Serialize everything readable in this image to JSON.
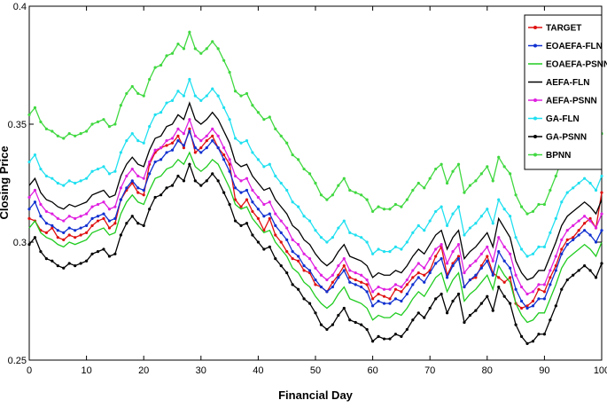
{
  "chart_data": {
    "type": "line",
    "title": "",
    "xlabel": "Financial Day",
    "ylabel": "Closing Price",
    "xlim": [
      0,
      100
    ],
    "ylim": [
      0.25,
      0.4
    ],
    "xticks": [
      0,
      10,
      20,
      30,
      40,
      50,
      60,
      70,
      80,
      90,
      100
    ],
    "yticks": [
      0.25,
      0.3,
      0.35,
      0.4
    ],
    "xtick_labels": [
      "0",
      "10",
      "20",
      "30",
      "40",
      "50",
      "60",
      "70",
      "80",
      "90",
      "100"
    ],
    "ytick_labels": [
      "0.25",
      "0.3",
      "0.35",
      "0.4"
    ],
    "grid": false,
    "legend_position": "top-right",
    "x": [
      0,
      1,
      2,
      3,
      4,
      5,
      6,
      7,
      8,
      9,
      10,
      11,
      12,
      13,
      14,
      15,
      16,
      17,
      18,
      19,
      20,
      21,
      22,
      23,
      24,
      25,
      26,
      27,
      28,
      29,
      30,
      31,
      32,
      33,
      34,
      35,
      36,
      37,
      38,
      39,
      40,
      41,
      42,
      43,
      44,
      45,
      46,
      47,
      48,
      49,
      50,
      51,
      52,
      53,
      54,
      55,
      56,
      57,
      58,
      59,
      60,
      61,
      62,
      63,
      64,
      65,
      66,
      67,
      68,
      69,
      70,
      71,
      72,
      73,
      74,
      75,
      76,
      77,
      78,
      79,
      80,
      81,
      82,
      83,
      84,
      85,
      86,
      87,
      88,
      89,
      90,
      91,
      92,
      93,
      94,
      95,
      96,
      97,
      98,
      99,
      100
    ],
    "series": [
      {
        "name": "TARGET",
        "color": "#e01010",
        "marker": "dot",
        "values": [
          0.31,
          0.309,
          0.305,
          0.304,
          0.306,
          0.302,
          0.301,
          0.303,
          0.302,
          0.303,
          0.304,
          0.307,
          0.309,
          0.31,
          0.306,
          0.308,
          0.318,
          0.322,
          0.325,
          0.321,
          0.32,
          0.333,
          0.338,
          0.34,
          0.341,
          0.342,
          0.345,
          0.34,
          0.348,
          0.338,
          0.34,
          0.343,
          0.345,
          0.34,
          0.337,
          0.333,
          0.318,
          0.315,
          0.318,
          0.313,
          0.31,
          0.305,
          0.31,
          0.303,
          0.3,
          0.296,
          0.293,
          0.292,
          0.288,
          0.287,
          0.282,
          0.281,
          0.279,
          0.283,
          0.286,
          0.29,
          0.285,
          0.284,
          0.283,
          0.282,
          0.276,
          0.278,
          0.277,
          0.276,
          0.28,
          0.279,
          0.282,
          0.285,
          0.287,
          0.286,
          0.288,
          0.294,
          0.298,
          0.286,
          0.291,
          0.294,
          0.281,
          0.284,
          0.285,
          0.29,
          0.294,
          0.287,
          0.285,
          0.283,
          0.285,
          0.274,
          0.272,
          0.273,
          0.275,
          0.28,
          0.279,
          0.285,
          0.29,
          0.297,
          0.301,
          0.302,
          0.305,
          0.308,
          0.31,
          0.306,
          0.321
        ]
      },
      {
        "name": "EOAEFA-FLN",
        "color": "#1030d0",
        "marker": "dot",
        "values": [
          0.314,
          0.317,
          0.311,
          0.308,
          0.307,
          0.305,
          0.304,
          0.306,
          0.305,
          0.306,
          0.307,
          0.31,
          0.311,
          0.312,
          0.309,
          0.31,
          0.318,
          0.323,
          0.326,
          0.323,
          0.322,
          0.329,
          0.334,
          0.335,
          0.338,
          0.339,
          0.343,
          0.341,
          0.347,
          0.34,
          0.338,
          0.34,
          0.343,
          0.34,
          0.335,
          0.33,
          0.323,
          0.321,
          0.322,
          0.317,
          0.314,
          0.311,
          0.312,
          0.307,
          0.304,
          0.301,
          0.296,
          0.294,
          0.29,
          0.288,
          0.284,
          0.281,
          0.279,
          0.281,
          0.285,
          0.288,
          0.283,
          0.282,
          0.281,
          0.279,
          0.273,
          0.275,
          0.274,
          0.274,
          0.276,
          0.275,
          0.278,
          0.282,
          0.285,
          0.283,
          0.287,
          0.291,
          0.293,
          0.285,
          0.29,
          0.293,
          0.281,
          0.284,
          0.286,
          0.289,
          0.292,
          0.286,
          0.296,
          0.292,
          0.289,
          0.28,
          0.275,
          0.272,
          0.273,
          0.276,
          0.276,
          0.282,
          0.288,
          0.295,
          0.299,
          0.301,
          0.303,
          0.305,
          0.303,
          0.3,
          0.305
        ]
      },
      {
        "name": "EOAEFA-PSNN",
        "color": "#20cc20",
        "marker": "none",
        "values": [
          0.306,
          0.309,
          0.304,
          0.302,
          0.301,
          0.299,
          0.298,
          0.3,
          0.299,
          0.3,
          0.301,
          0.304,
          0.305,
          0.306,
          0.303,
          0.304,
          0.312,
          0.317,
          0.32,
          0.317,
          0.316,
          0.322,
          0.327,
          0.328,
          0.331,
          0.332,
          0.335,
          0.333,
          0.338,
          0.332,
          0.33,
          0.332,
          0.335,
          0.333,
          0.328,
          0.323,
          0.316,
          0.314,
          0.315,
          0.31,
          0.307,
          0.304,
          0.305,
          0.3,
          0.297,
          0.294,
          0.289,
          0.287,
          0.283,
          0.281,
          0.277,
          0.274,
          0.272,
          0.274,
          0.278,
          0.281,
          0.276,
          0.275,
          0.274,
          0.272,
          0.267,
          0.269,
          0.268,
          0.268,
          0.27,
          0.269,
          0.272,
          0.276,
          0.279,
          0.277,
          0.281,
          0.285,
          0.287,
          0.279,
          0.284,
          0.287,
          0.275,
          0.278,
          0.28,
          0.283,
          0.286,
          0.28,
          0.29,
          0.286,
          0.283,
          0.274,
          0.269,
          0.266,
          0.267,
          0.27,
          0.27,
          0.276,
          0.282,
          0.289,
          0.293,
          0.295,
          0.297,
          0.299,
          0.297,
          0.294,
          0.3
        ]
      },
      {
        "name": "AEFA-FLN",
        "color": "#000000",
        "marker": "none",
        "values": [
          0.324,
          0.327,
          0.321,
          0.318,
          0.317,
          0.315,
          0.314,
          0.316,
          0.315,
          0.316,
          0.317,
          0.32,
          0.321,
          0.322,
          0.319,
          0.32,
          0.328,
          0.333,
          0.336,
          0.333,
          0.332,
          0.339,
          0.344,
          0.345,
          0.349,
          0.35,
          0.354,
          0.352,
          0.359,
          0.352,
          0.35,
          0.352,
          0.355,
          0.352,
          0.347,
          0.342,
          0.334,
          0.332,
          0.333,
          0.328,
          0.325,
          0.322,
          0.323,
          0.318,
          0.315,
          0.312,
          0.307,
          0.305,
          0.301,
          0.299,
          0.295,
          0.292,
          0.29,
          0.292,
          0.296,
          0.299,
          0.294,
          0.293,
          0.292,
          0.29,
          0.285,
          0.287,
          0.286,
          0.286,
          0.288,
          0.287,
          0.29,
          0.294,
          0.297,
          0.295,
          0.299,
          0.303,
          0.305,
          0.297,
          0.302,
          0.305,
          0.293,
          0.296,
          0.298,
          0.301,
          0.304,
          0.298,
          0.31,
          0.306,
          0.302,
          0.292,
          0.287,
          0.284,
          0.285,
          0.288,
          0.288,
          0.294,
          0.3,
          0.307,
          0.311,
          0.313,
          0.315,
          0.317,
          0.315,
          0.312,
          0.318
        ]
      },
      {
        "name": "AEFA-PSNN",
        "color": "#e020e0",
        "marker": "dot",
        "values": [
          0.319,
          0.322,
          0.316,
          0.313,
          0.312,
          0.31,
          0.309,
          0.311,
          0.31,
          0.311,
          0.312,
          0.315,
          0.316,
          0.317,
          0.314,
          0.315,
          0.323,
          0.328,
          0.331,
          0.328,
          0.327,
          0.334,
          0.339,
          0.34,
          0.343,
          0.344,
          0.348,
          0.346,
          0.352,
          0.345,
          0.343,
          0.345,
          0.348,
          0.345,
          0.34,
          0.335,
          0.328,
          0.326,
          0.327,
          0.322,
          0.319,
          0.316,
          0.317,
          0.312,
          0.309,
          0.306,
          0.301,
          0.299,
          0.295,
          0.293,
          0.289,
          0.286,
          0.284,
          0.286,
          0.29,
          0.293,
          0.288,
          0.287,
          0.286,
          0.284,
          0.279,
          0.281,
          0.28,
          0.28,
          0.282,
          0.281,
          0.284,
          0.288,
          0.291,
          0.289,
          0.293,
          0.297,
          0.299,
          0.291,
          0.296,
          0.299,
          0.287,
          0.29,
          0.292,
          0.295,
          0.298,
          0.292,
          0.302,
          0.298,
          0.295,
          0.286,
          0.281,
          0.278,
          0.279,
          0.282,
          0.282,
          0.288,
          0.294,
          0.301,
          0.305,
          0.307,
          0.309,
          0.311,
          0.309,
          0.306,
          0.312
        ]
      },
      {
        "name": "GA-FLN",
        "color": "#20e0f0",
        "marker": "dot",
        "values": [
          0.334,
          0.337,
          0.331,
          0.328,
          0.327,
          0.325,
          0.324,
          0.326,
          0.325,
          0.326,
          0.327,
          0.33,
          0.331,
          0.332,
          0.329,
          0.33,
          0.338,
          0.343,
          0.346,
          0.343,
          0.342,
          0.349,
          0.354,
          0.355,
          0.359,
          0.36,
          0.364,
          0.362,
          0.369,
          0.362,
          0.36,
          0.362,
          0.365,
          0.362,
          0.357,
          0.352,
          0.344,
          0.342,
          0.343,
          0.338,
          0.335,
          0.332,
          0.333,
          0.328,
          0.325,
          0.322,
          0.317,
          0.315,
          0.311,
          0.309,
          0.305,
          0.302,
          0.3,
          0.302,
          0.306,
          0.309,
          0.304,
          0.303,
          0.302,
          0.3,
          0.295,
          0.297,
          0.296,
          0.296,
          0.298,
          0.297,
          0.3,
          0.304,
          0.307,
          0.305,
          0.309,
          0.313,
          0.315,
          0.307,
          0.312,
          0.315,
          0.303,
          0.306,
          0.308,
          0.311,
          0.314,
          0.308,
          0.318,
          0.314,
          0.311,
          0.302,
          0.297,
          0.294,
          0.295,
          0.298,
          0.298,
          0.304,
          0.31,
          0.317,
          0.321,
          0.323,
          0.325,
          0.327,
          0.325,
          0.322,
          0.328
        ]
      },
      {
        "name": "GA-PSNN",
        "color": "#000000",
        "marker": "dot",
        "values": [
          0.299,
          0.302,
          0.296,
          0.293,
          0.292,
          0.29,
          0.289,
          0.291,
          0.29,
          0.291,
          0.292,
          0.295,
          0.296,
          0.297,
          0.294,
          0.295,
          0.303,
          0.308,
          0.311,
          0.308,
          0.307,
          0.314,
          0.319,
          0.32,
          0.323,
          0.324,
          0.328,
          0.326,
          0.333,
          0.326,
          0.324,
          0.326,
          0.329,
          0.326,
          0.321,
          0.316,
          0.309,
          0.307,
          0.308,
          0.303,
          0.3,
          0.297,
          0.298,
          0.293,
          0.29,
          0.287,
          0.282,
          0.28,
          0.276,
          0.274,
          0.27,
          0.265,
          0.263,
          0.265,
          0.269,
          0.272,
          0.267,
          0.266,
          0.265,
          0.263,
          0.258,
          0.26,
          0.259,
          0.259,
          0.261,
          0.26,
          0.263,
          0.267,
          0.27,
          0.268,
          0.272,
          0.276,
          0.278,
          0.27,
          0.275,
          0.278,
          0.266,
          0.269,
          0.271,
          0.274,
          0.277,
          0.271,
          0.281,
          0.277,
          0.274,
          0.265,
          0.26,
          0.257,
          0.258,
          0.261,
          0.261,
          0.267,
          0.273,
          0.28,
          0.284,
          0.286,
          0.288,
          0.29,
          0.288,
          0.285,
          0.291
        ]
      },
      {
        "name": "BPNN",
        "color": "#40d840",
        "marker": "dot",
        "values": [
          0.354,
          0.357,
          0.351,
          0.348,
          0.347,
          0.345,
          0.344,
          0.346,
          0.345,
          0.346,
          0.347,
          0.35,
          0.351,
          0.352,
          0.349,
          0.35,
          0.358,
          0.363,
          0.366,
          0.363,
          0.362,
          0.369,
          0.374,
          0.375,
          0.379,
          0.38,
          0.384,
          0.382,
          0.389,
          0.382,
          0.38,
          0.382,
          0.385,
          0.382,
          0.377,
          0.372,
          0.364,
          0.362,
          0.363,
          0.358,
          0.355,
          0.352,
          0.353,
          0.348,
          0.345,
          0.342,
          0.337,
          0.335,
          0.331,
          0.329,
          0.325,
          0.32,
          0.318,
          0.32,
          0.324,
          0.327,
          0.322,
          0.321,
          0.32,
          0.318,
          0.313,
          0.315,
          0.314,
          0.314,
          0.316,
          0.315,
          0.318,
          0.322,
          0.325,
          0.323,
          0.327,
          0.331,
          0.333,
          0.325,
          0.33,
          0.333,
          0.321,
          0.324,
          0.326,
          0.329,
          0.332,
          0.326,
          0.336,
          0.332,
          0.329,
          0.32,
          0.315,
          0.312,
          0.313,
          0.316,
          0.316,
          0.322,
          0.328,
          0.335,
          0.339,
          0.341,
          0.343,
          0.345,
          0.343,
          0.34,
          0.346
        ]
      }
    ]
  }
}
